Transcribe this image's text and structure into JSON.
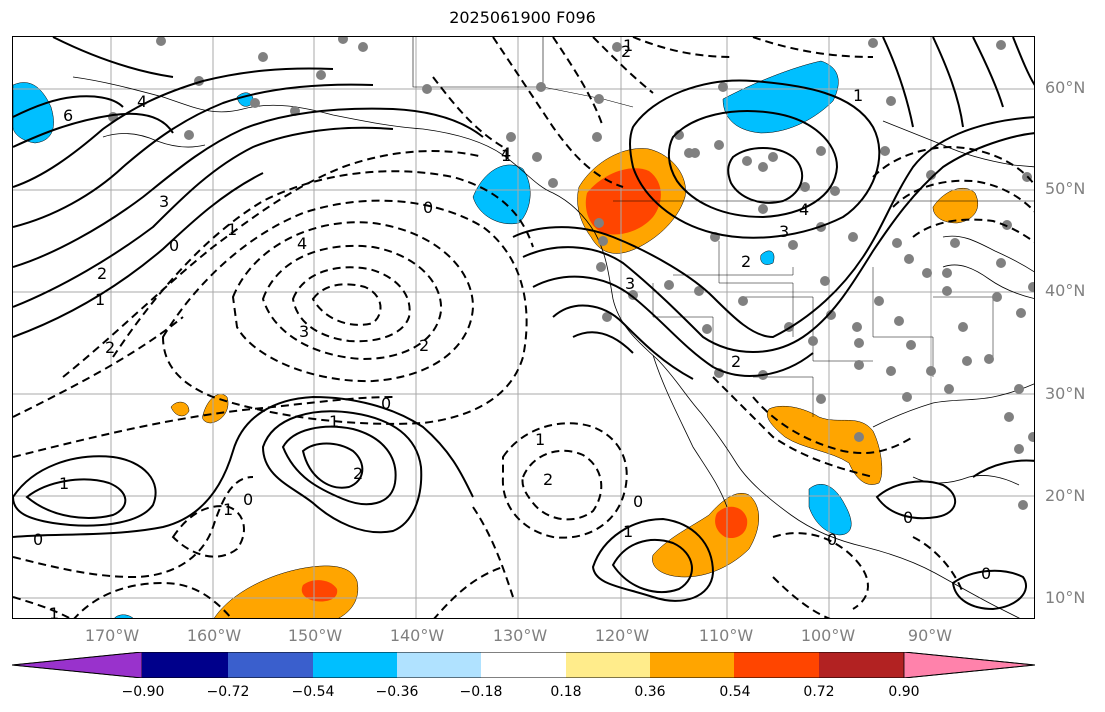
{
  "title": "2025061900 F096",
  "lat_labels": [
    "60°N",
    "50°N",
    "40°N",
    "30°N",
    "20°N",
    "10°N"
  ],
  "lon_labels": [
    "170°W",
    "160°W",
    "150°W",
    "140°W",
    "130°W",
    "120°W",
    "110°W",
    "100°W",
    "90°W"
  ],
  "colorbar": {
    "colors": [
      "#9932cc",
      "#00008b",
      "#3a5fcd",
      "#00bfff",
      "#b0e2ff",
      "#ffffff",
      "#ffec8b",
      "#ffa500",
      "#ff4500",
      "#b22222",
      "#ff82ab"
    ],
    "tick_labels": [
      "−0.90",
      "−0.72",
      "−0.54",
      "−0.36",
      "−0.18",
      "0.18",
      "0.36",
      "0.54",
      "0.72",
      "0.90"
    ]
  },
  "contour_labels": {
    "c1": "6",
    "c2": "4",
    "c3": "3",
    "c4": "2",
    "c5": "1",
    "c6": "0",
    "c7": "1",
    "c8": "4",
    "c9": "3",
    "c10": "2",
    "c11": "0",
    "c12": "2",
    "c13": "1",
    "c14": "4",
    "c15": "3",
    "c16": "2",
    "c17": "1",
    "c18": "0",
    "c19": "1",
    "c20": "2",
    "c21": "1",
    "c22": "0",
    "c23": "1",
    "c24": "0",
    "c25": "1",
    "c26": "2",
    "c27": "0",
    "c28": "1",
    "c29": "0",
    "c30": "3",
    "c31": "2",
    "c32": "4",
    "c33": "1",
    "c34": "2",
    "c35": "0",
    "c36": "0",
    "c37": "1"
  }
}
